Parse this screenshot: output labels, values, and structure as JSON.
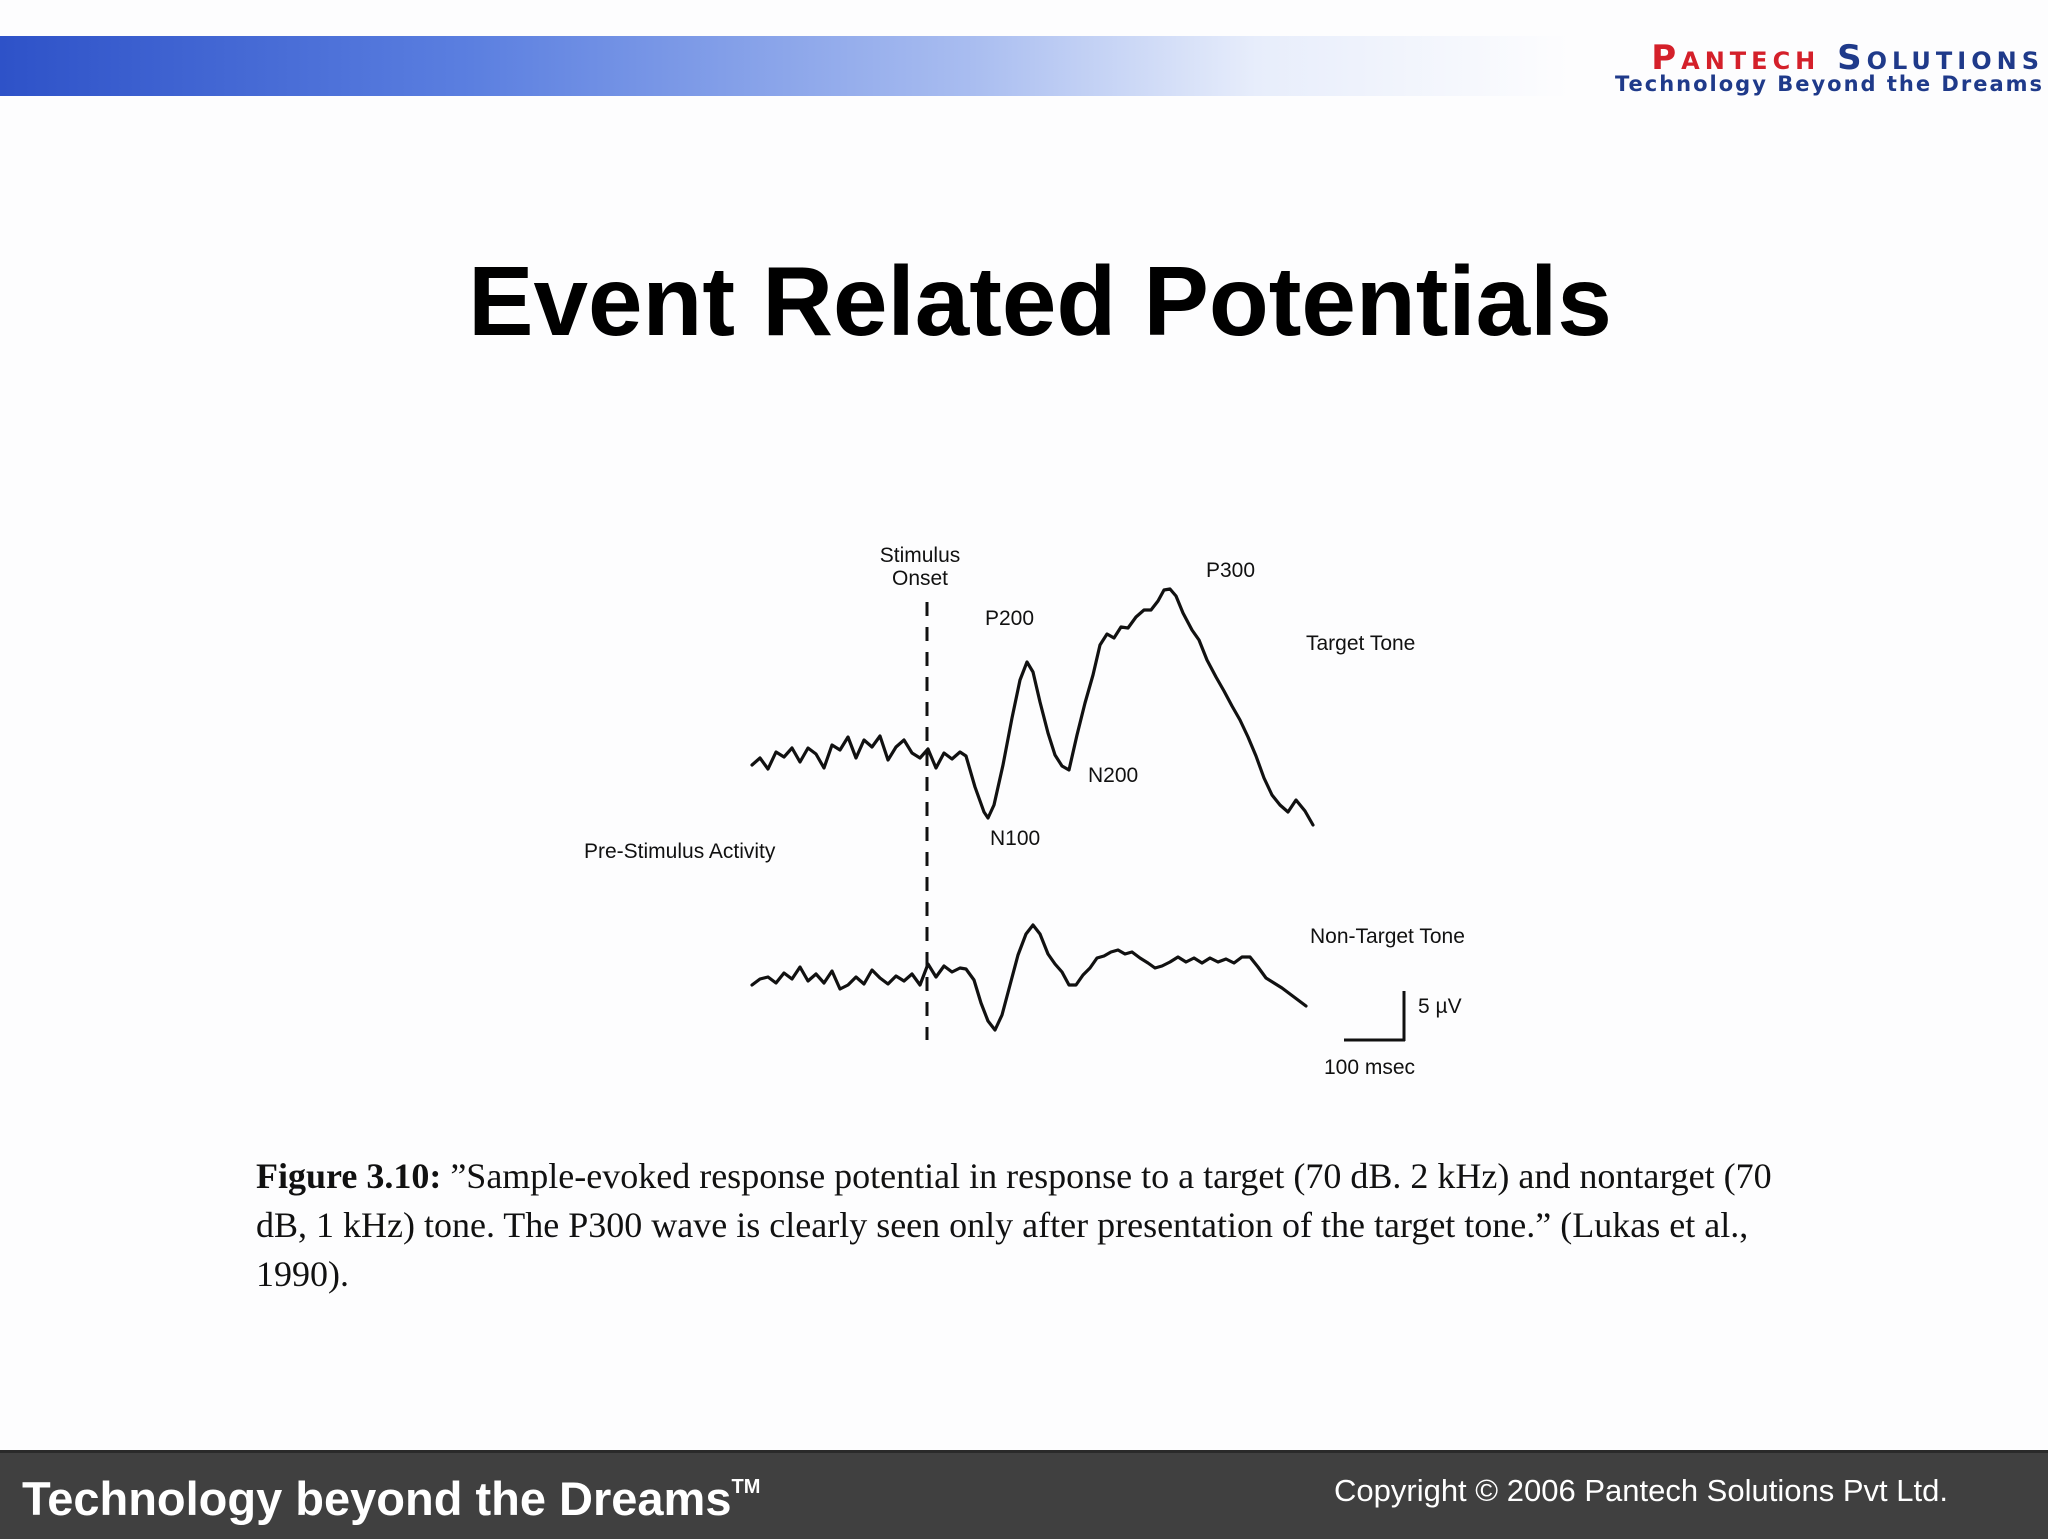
{
  "header": {
    "logo_name_first": "Pantech",
    "logo_name_second": "Solutions",
    "logo_tagline": "Technology Beyond the Dreams",
    "band_colors": [
      "#2e52c8",
      "#5b7fe0",
      "#a9bdf0",
      "#fdfdfe"
    ],
    "logo_colors": {
      "name": "#d4202a",
      "tagline": "#1f3a8a"
    }
  },
  "slide": {
    "title": "Event Related Potentials"
  },
  "figure": {
    "labels": {
      "stimulus_onset_line1": "Stimulus",
      "stimulus_onset_line2": "Onset",
      "p200": "P200",
      "p300": "P300",
      "n100": "N100",
      "n200": "N200",
      "target_tone": "Target Tone",
      "non_target_tone": "Non-Target Tone",
      "pre_stimulus": "Pre-Stimulus Activity",
      "scale_voltage": "5 µV",
      "scale_time": "100 msec"
    },
    "caption": {
      "label": "Figure 3.10:",
      "text": " ”Sample-evoked response potential in response to a target (70 dB. 2 kHz) and nontarget (70 dB, 1 kHz) tone. The P300 wave is clearly seen only after presentation of the target tone.” (Lukas et al., 1990)."
    }
  },
  "footer": {
    "tagline": "Technology beyond the Dreams",
    "trademark": "TM",
    "copyright": "Copyright © 2006 Pantech Solutions Pvt Ltd.",
    "background_color": "#404040"
  }
}
